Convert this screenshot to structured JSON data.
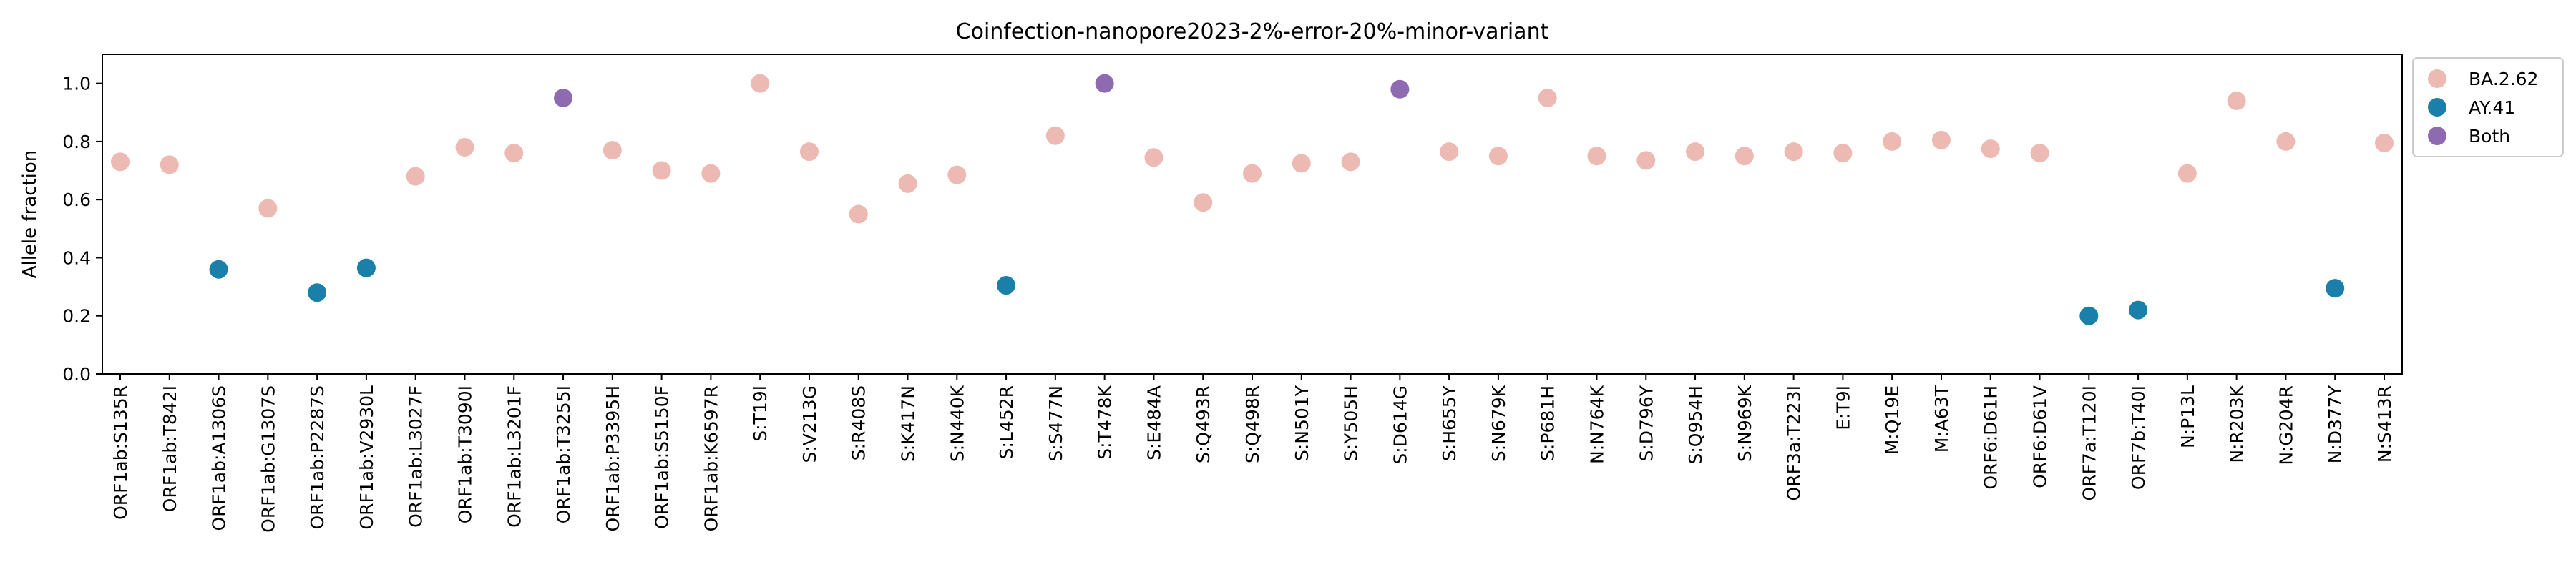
{
  "chart_data": {
    "type": "scatter",
    "title": "Coinfection-nanopore2023-2%-error-20%-minor-variant",
    "xlabel": "",
    "ylabel": "Allele fraction",
    "ylim": [
      0,
      1.1
    ],
    "yticks": [
      "0.0",
      "0.2",
      "0.4",
      "0.6",
      "0.8",
      "1.0"
    ],
    "grid": false,
    "legend_position": "outside-top-right",
    "categories": [
      "ORF1ab:S135R",
      "ORF1ab:T842I",
      "ORF1ab:A1306S",
      "ORF1ab:G1307S",
      "ORF1ab:P2287S",
      "ORF1ab:V2930L",
      "ORF1ab:L3027F",
      "ORF1ab:T3090I",
      "ORF1ab:L3201F",
      "ORF1ab:T3255I",
      "ORF1ab:P3395H",
      "ORF1ab:S5150F",
      "ORF1ab:K6597R",
      "S:T19I",
      "S:V213G",
      "S:R408S",
      "S:K417N",
      "S:N440K",
      "S:L452R",
      "S:S477N",
      "S:T478K",
      "S:E484A",
      "S:Q493R",
      "S:Q498R",
      "S:N501Y",
      "S:Y505H",
      "S:D614G",
      "S:H655Y",
      "S:N679K",
      "S:P681H",
      "N:N764K",
      "S:D796Y",
      "S:Q954H",
      "S:N969K",
      "ORF3a:T223I",
      "E:T9I",
      "M:Q19E",
      "M:A63T",
      "ORF6:D61H",
      "ORF6:D61V",
      "ORF7a:T120I",
      "ORF7b:T40I",
      "N:P13L",
      "N:R203K",
      "N:G204R",
      "N:D377Y",
      "N:S413R"
    ],
    "series": [
      {
        "name": "BA.2.62",
        "color": "#ecbab3",
        "points": [
          {
            "x": "ORF1ab:S135R",
            "y": 0.73
          },
          {
            "x": "ORF1ab:T842I",
            "y": 0.72
          },
          {
            "x": "ORF1ab:G1307S",
            "y": 0.57
          },
          {
            "x": "ORF1ab:L3027F",
            "y": 0.68
          },
          {
            "x": "ORF1ab:T3090I",
            "y": 0.78
          },
          {
            "x": "ORF1ab:L3201F",
            "y": 0.76
          },
          {
            "x": "ORF1ab:P3395H",
            "y": 0.77
          },
          {
            "x": "ORF1ab:S5150F",
            "y": 0.7
          },
          {
            "x": "ORF1ab:K6597R",
            "y": 0.69
          },
          {
            "x": "S:T19I",
            "y": 1.0
          },
          {
            "x": "S:V213G",
            "y": 0.765
          },
          {
            "x": "S:R408S",
            "y": 0.55
          },
          {
            "x": "S:K417N",
            "y": 0.655
          },
          {
            "x": "S:N440K",
            "y": 0.685
          },
          {
            "x": "S:S477N",
            "y": 0.82
          },
          {
            "x": "S:E484A",
            "y": 0.745
          },
          {
            "x": "S:Q493R",
            "y": 0.59
          },
          {
            "x": "S:Q498R",
            "y": 0.69
          },
          {
            "x": "S:N501Y",
            "y": 0.725
          },
          {
            "x": "S:Y505H",
            "y": 0.73
          },
          {
            "x": "S:H655Y",
            "y": 0.765
          },
          {
            "x": "S:N679K",
            "y": 0.75
          },
          {
            "x": "S:P681H",
            "y": 0.95
          },
          {
            "x": "N:N764K",
            "y": 0.75
          },
          {
            "x": "S:D796Y",
            "y": 0.735
          },
          {
            "x": "S:Q954H",
            "y": 0.765
          },
          {
            "x": "S:N969K",
            "y": 0.75
          },
          {
            "x": "ORF3a:T223I",
            "y": 0.765
          },
          {
            "x": "E:T9I",
            "y": 0.76
          },
          {
            "x": "M:Q19E",
            "y": 0.8
          },
          {
            "x": "M:A63T",
            "y": 0.805
          },
          {
            "x": "ORF6:D61H",
            "y": 0.775
          },
          {
            "x": "ORF6:D61V",
            "y": 0.76
          },
          {
            "x": "N:P13L",
            "y": 0.69
          },
          {
            "x": "N:R203K",
            "y": 0.94
          },
          {
            "x": "N:G204R",
            "y": 0.8
          },
          {
            "x": "N:S413R",
            "y": 0.795
          }
        ]
      },
      {
        "name": "AY.41",
        "color": "#1a80aa",
        "points": [
          {
            "x": "ORF1ab:A1306S",
            "y": 0.36
          },
          {
            "x": "ORF1ab:P2287S",
            "y": 0.28
          },
          {
            "x": "ORF1ab:V2930L",
            "y": 0.365
          },
          {
            "x": "S:L452R",
            "y": 0.305
          },
          {
            "x": "ORF7a:T120I",
            "y": 0.2
          },
          {
            "x": "ORF7b:T40I",
            "y": 0.22
          },
          {
            "x": "N:D377Y",
            "y": 0.295
          }
        ]
      },
      {
        "name": "Both",
        "color": "#8e6bb0",
        "points": [
          {
            "x": "ORF1ab:T3255I",
            "y": 0.95
          },
          {
            "x": "S:T478K",
            "y": 1.0
          },
          {
            "x": "S:D614G",
            "y": 0.98
          }
        ]
      }
    ]
  }
}
